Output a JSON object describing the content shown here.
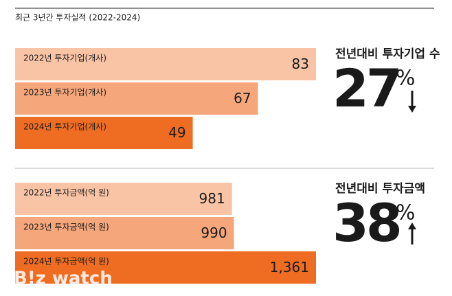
{
  "header": {
    "title": "최근 3년간 투자실적 (2022-2024)"
  },
  "watermark": "B!z watch",
  "chart_data": [
    {
      "type": "bar",
      "orientation": "horizontal",
      "categories": [
        "2022년 투자기업(개사)",
        "2023년 투자기업(개사)",
        "2024년 투자기업(개사)"
      ],
      "values": [
        83,
        67,
        49
      ],
      "colors": [
        "#f9c4a6",
        "#f5a77b",
        "#ef6d22"
      ],
      "annotation": {
        "label": "전년대비 투자기업 수",
        "value": 27,
        "unit": "%",
        "direction": "down"
      }
    },
    {
      "type": "bar",
      "orientation": "horizontal",
      "categories": [
        "2022년 투자금액(억 원)",
        "2023년 투자금액(억 원)",
        "2024년 투자금액(억 원)"
      ],
      "values": [
        981,
        990,
        1361
      ],
      "value_labels": [
        "981",
        "990",
        "1,361"
      ],
      "colors": [
        "#f9c4a6",
        "#f5a77b",
        "#ef6d22"
      ],
      "annotation": {
        "label": "전년대비 투자금액",
        "value": 38,
        "unit": "%",
        "direction": "up"
      }
    }
  ]
}
